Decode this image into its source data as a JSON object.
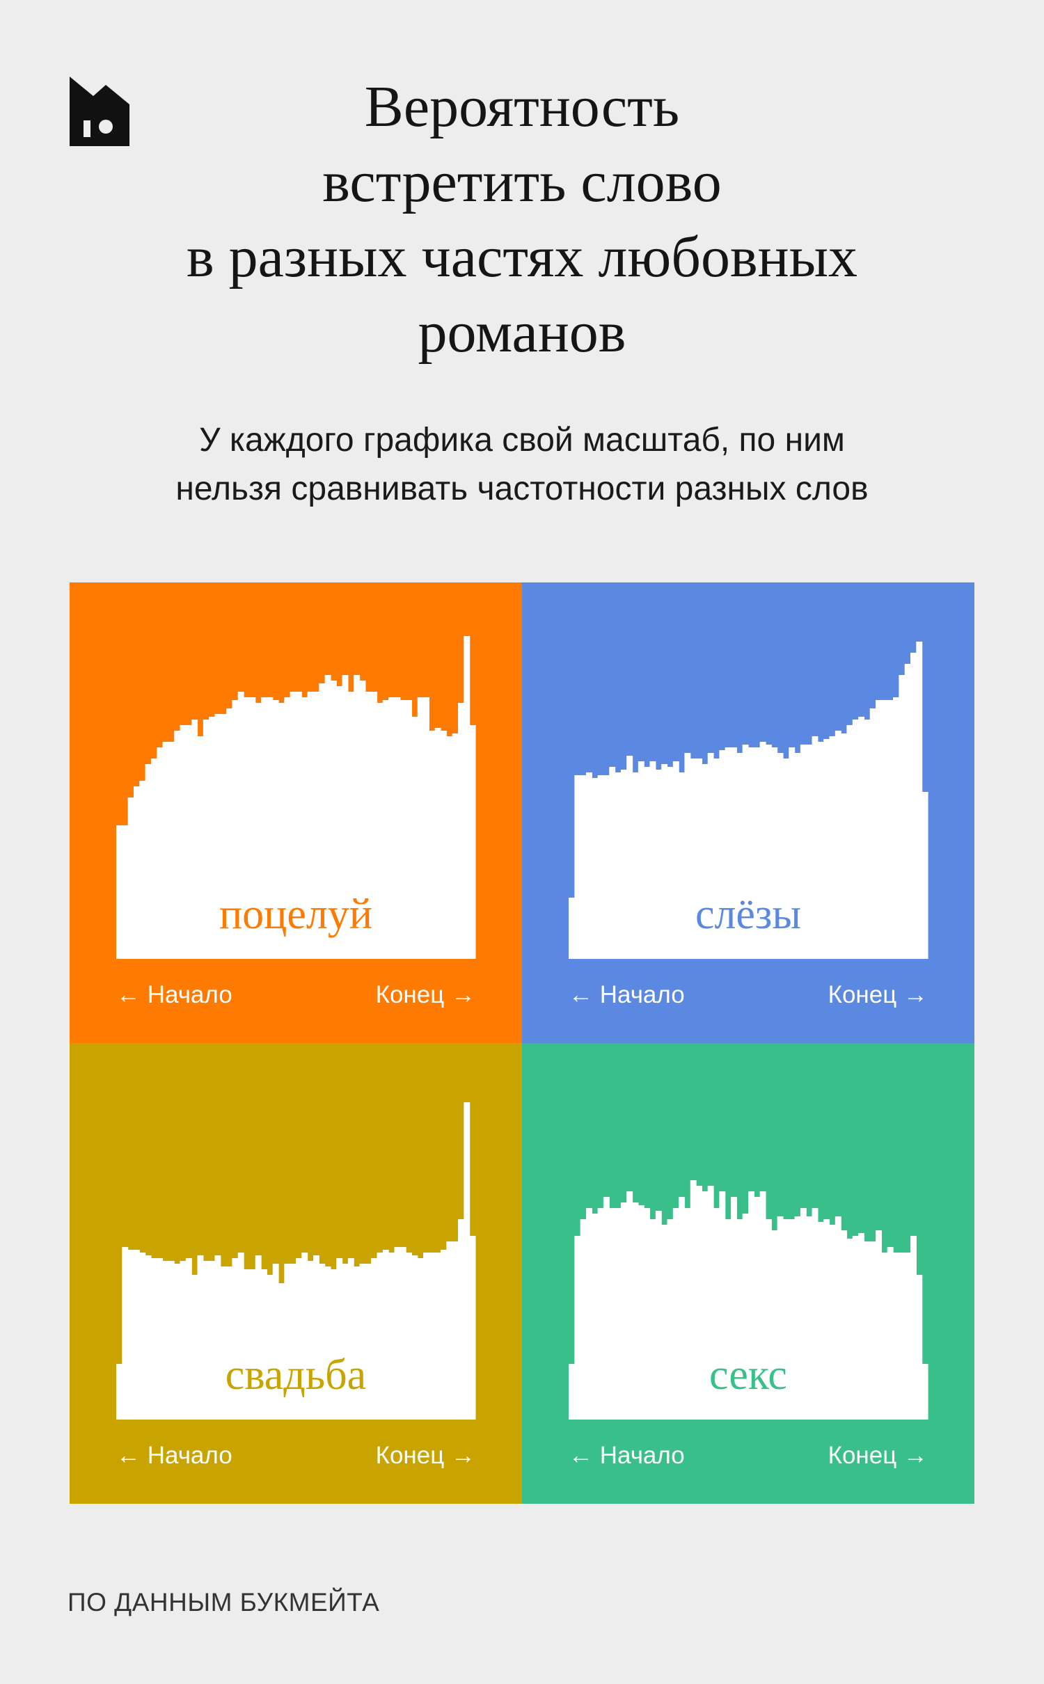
{
  "title_lines": [
    "Вероятность",
    "встретить слово",
    "в разных частях любовных",
    "романов"
  ],
  "subtitle_lines": [
    "У каждого графика свой масштаб, по ним",
    "нельзя сравнивать частотности разных слов"
  ],
  "source": "ПО ДАННЫМ БУКМЕЙТА",
  "logo_icon": "bookmate-logo-icon",
  "chart_data": [
    {
      "type": "bar",
      "word": "поцелуй",
      "background_color": "#ff7a00",
      "word_color": "#ff7a00",
      "xlabel_start": "← Начало",
      "xlabel_end": "Конец →",
      "values": [
        0.48,
        0.48,
        0.58,
        0.62,
        0.64,
        0.7,
        0.72,
        0.76,
        0.78,
        0.78,
        0.82,
        0.84,
        0.84,
        0.86,
        0.8,
        0.86,
        0.87,
        0.88,
        0.88,
        0.9,
        0.93,
        0.96,
        0.94,
        0.94,
        0.92,
        0.94,
        0.94,
        0.93,
        0.92,
        0.94,
        0.96,
        0.96,
        0.94,
        0.96,
        0.96,
        0.99,
        1.02,
        1.0,
        0.98,
        1.02,
        0.96,
        1.02,
        1.0,
        0.96,
        0.96,
        0.92,
        0.93,
        0.94,
        0.94,
        0.93,
        0.93,
        0.87,
        0.94,
        0.94,
        0.82,
        0.83,
        0.82,
        0.8,
        0.81,
        0.92,
        1.16,
        0.84
      ]
    },
    {
      "type": "bar",
      "word": "слёзы",
      "background_color": "#5b88e0",
      "word_color": "#5b88e0",
      "xlabel_start": "← Начало",
      "xlabel_end": "Конец →",
      "values": [
        0.22,
        0.66,
        0.66,
        0.67,
        0.65,
        0.66,
        0.66,
        0.69,
        0.67,
        0.68,
        0.73,
        0.67,
        0.71,
        0.69,
        0.71,
        0.68,
        0.7,
        0.69,
        0.71,
        0.67,
        0.74,
        0.72,
        0.72,
        0.7,
        0.74,
        0.72,
        0.75,
        0.76,
        0.76,
        0.74,
        0.77,
        0.76,
        0.76,
        0.78,
        0.77,
        0.76,
        0.74,
        0.72,
        0.76,
        0.74,
        0.77,
        0.77,
        0.8,
        0.78,
        0.79,
        0.8,
        0.82,
        0.81,
        0.84,
        0.86,
        0.87,
        0.86,
        0.9,
        0.93,
        0.93,
        0.93,
        0.94,
        1.02,
        1.06,
        1.1,
        1.14,
        0.6
      ]
    },
    {
      "type": "bar",
      "word": "свадьба",
      "background_color": "#c9a400",
      "word_color": "#c9a400",
      "xlabel_start": "← Начало",
      "xlabel_end": "Конец →",
      "values": [
        0.2,
        0.62,
        0.61,
        0.61,
        0.6,
        0.59,
        0.58,
        0.58,
        0.57,
        0.57,
        0.56,
        0.57,
        0.58,
        0.52,
        0.59,
        0.57,
        0.57,
        0.59,
        0.55,
        0.55,
        0.58,
        0.6,
        0.54,
        0.54,
        0.59,
        0.54,
        0.52,
        0.56,
        0.49,
        0.56,
        0.56,
        0.58,
        0.6,
        0.57,
        0.59,
        0.56,
        0.55,
        0.54,
        0.58,
        0.56,
        0.58,
        0.55,
        0.56,
        0.56,
        0.58,
        0.6,
        0.61,
        0.6,
        0.62,
        0.62,
        0.6,
        0.59,
        0.58,
        0.6,
        0.6,
        0.6,
        0.61,
        0.64,
        0.64,
        0.72,
        1.14,
        0.66
      ]
    },
    {
      "type": "bar",
      "word": "секс",
      "background_color": "#38bf8a",
      "word_color": "#38bf8a",
      "xlabel_start": "← Начало",
      "xlabel_end": "Конец →",
      "values": [
        0.2,
        0.66,
        0.72,
        0.76,
        0.74,
        0.76,
        0.8,
        0.76,
        0.76,
        0.78,
        0.82,
        0.78,
        0.77,
        0.76,
        0.72,
        0.75,
        0.7,
        0.72,
        0.76,
        0.8,
        0.76,
        0.86,
        0.84,
        0.82,
        0.84,
        0.76,
        0.82,
        0.72,
        0.8,
        0.72,
        0.74,
        0.82,
        0.8,
        0.82,
        0.72,
        0.68,
        0.73,
        0.72,
        0.72,
        0.73,
        0.76,
        0.73,
        0.76,
        0.71,
        0.72,
        0.7,
        0.73,
        0.68,
        0.65,
        0.66,
        0.67,
        0.64,
        0.64,
        0.68,
        0.6,
        0.62,
        0.6,
        0.6,
        0.6,
        0.66,
        0.52,
        0.2
      ]
    }
  ]
}
